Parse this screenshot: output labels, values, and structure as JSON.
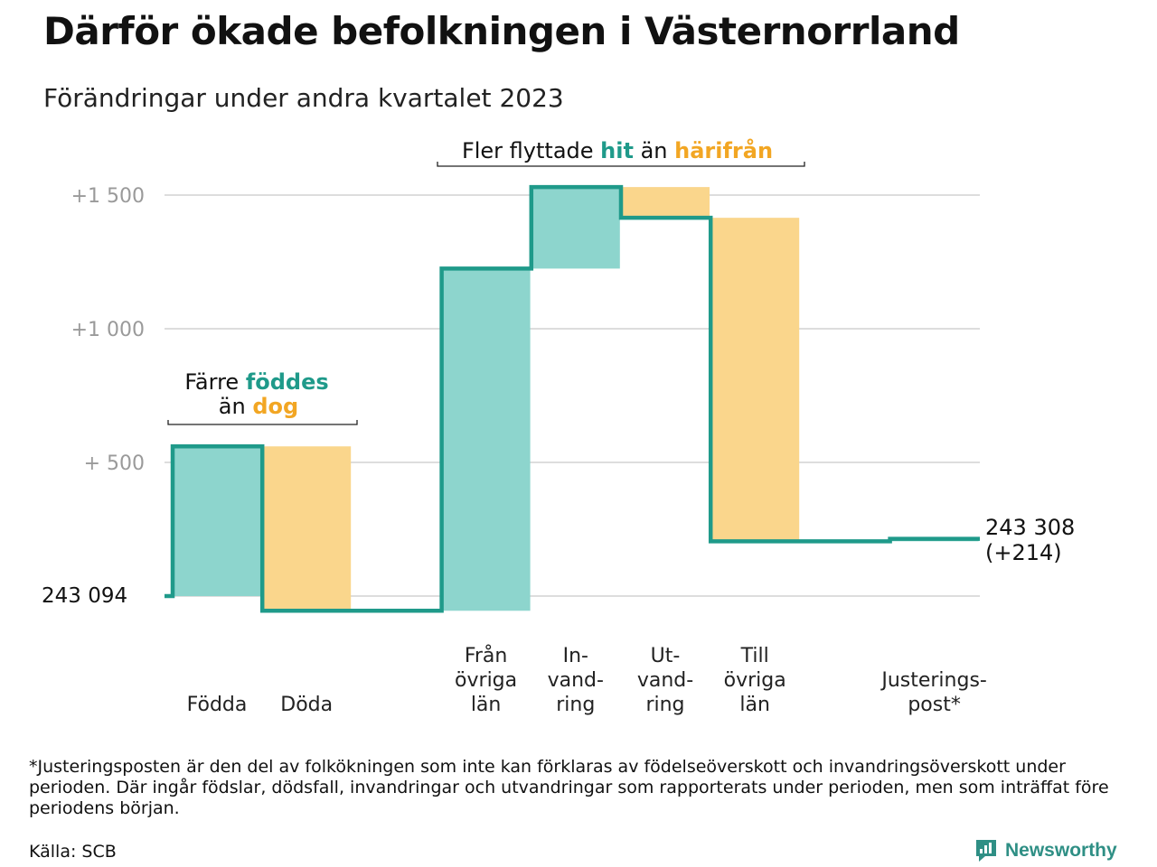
{
  "title": "Därför ökade befolkningen i Västernorrland",
  "subtitle": "Förändringar under andra kvartalet 2023",
  "colors": {
    "increase_fill": "#8dd5cd",
    "decrease_fill": "#fad68c",
    "line": "#1f9a8a",
    "grid": "#dddddd",
    "hl_green": "#1f9a8a",
    "hl_orange": "#f2a623"
  },
  "annotations": {
    "births": {
      "line1_a": "Färre ",
      "line1_b": "föddes",
      "line2_a": "än ",
      "line2_b": "dog"
    },
    "migration": {
      "a": "Fler flyttade ",
      "b": "hit",
      "c": " än ",
      "d": "härifrån"
    }
  },
  "chart_data": {
    "type": "waterfall",
    "title": "Därför ökade befolkningen i Västernorrland",
    "subtitle": "Förändringar under andra kvartalet 2023",
    "start_value": 243094,
    "start_label": "243   094",
    "end_label_line1": "243 308",
    "end_label_line2": "(+214)",
    "y_relative_range": [
      0,
      1500
    ],
    "y_ticks": [
      {
        "value": 500,
        "label": "+   500"
      },
      {
        "value": 1000,
        "label": "+1   000"
      },
      {
        "value": 1500,
        "label": "+1   500"
      }
    ],
    "grid": true,
    "steps": [
      {
        "label_lines": [
          "Födda"
        ],
        "change": 560,
        "kind": "increase"
      },
      {
        "label_lines": [
          "Döda"
        ],
        "change": -615,
        "kind": "decrease"
      },
      {
        "label_lines": [
          "",
          ""
        ],
        "change": 0,
        "kind": "gap"
      },
      {
        "label_lines": [
          "Från",
          "övriga",
          "län"
        ],
        "change": 1280,
        "kind": "increase"
      },
      {
        "label_lines": [
          "In-",
          "vand-",
          "ring"
        ],
        "change": 305,
        "kind": "increase"
      },
      {
        "label_lines": [
          "Ut-",
          "vand-",
          "ring"
        ],
        "change": -115,
        "kind": "decrease"
      },
      {
        "label_lines": [
          "Till",
          "övriga",
          "län"
        ],
        "change": -1210,
        "kind": "decrease"
      },
      {
        "label_lines": [
          "",
          ""
        ],
        "change": 0,
        "kind": "gap"
      },
      {
        "label_lines": [
          "Justerings-",
          "post*"
        ],
        "change": 9,
        "kind": "increase"
      }
    ],
    "end_change": 214
  },
  "footnote": "*Justeringsposten är den del av folkökningen som inte kan förklaras av födelseöverskott och invandringsöverskott under perioden. Där ingår födslar, dödsfall, invandringar och utvandringar som rapporterats under perioden, men som inträffat före periodens början.",
  "source": "Källa: SCB",
  "brand": "Newsworthy"
}
